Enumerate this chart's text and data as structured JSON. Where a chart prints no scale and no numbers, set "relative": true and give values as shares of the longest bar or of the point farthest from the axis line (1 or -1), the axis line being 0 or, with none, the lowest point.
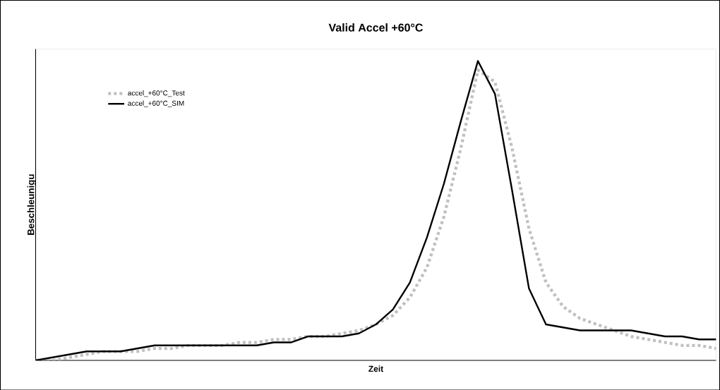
{
  "chart_data": {
    "type": "line",
    "title": "Valid Accel  +60°C",
    "xlabel": "Zeit",
    "ylabel": "Beschleunigu",
    "relative": true,
    "legend": "top left",
    "categories": [
      null,
      null,
      null,
      null,
      null,
      null,
      null,
      null,
      null,
      null,
      null,
      null,
      null,
      null,
      null,
      null,
      null,
      null,
      null,
      null,
      null,
      null,
      null,
      null,
      null,
      null,
      null,
      null,
      null,
      null,
      null,
      null,
      null,
      null,
      null,
      null,
      null,
      null,
      null,
      null,
      null
    ],
    "series": [
      {
        "name": "accel_+60°C_Test",
        "color": "#c0c0c0",
        "line_style": "dashed",
        "values": [
          0,
          0,
          0.01,
          0.02,
          0.03,
          0.03,
          0.03,
          0.04,
          0.04,
          0.05,
          0.05,
          0.05,
          0.06,
          0.06,
          0.07,
          0.07,
          0.08,
          0.08,
          0.09,
          0.1,
          0.12,
          0.15,
          0.21,
          0.31,
          0.48,
          0.71,
          0.97,
          0.93,
          0.71,
          0.44,
          0.26,
          0.18,
          0.14,
          0.12,
          0.1,
          0.08,
          0.07,
          0.06,
          0.05,
          0.05,
          0.04
        ]
      },
      {
        "name": "accel_+60°C_SIM",
        "color": "#000000",
        "line_style": "solid",
        "values": [
          0,
          0.01,
          0.02,
          0.03,
          0.03,
          0.03,
          0.04,
          0.05,
          0.05,
          0.05,
          0.05,
          0.05,
          0.05,
          0.05,
          0.06,
          0.06,
          0.08,
          0.08,
          0.08,
          0.09,
          0.12,
          0.17,
          0.26,
          0.41,
          0.59,
          0.8,
          1,
          0.89,
          0.57,
          0.24,
          0.12,
          0.11,
          0.1,
          0.1,
          0.1,
          0.1,
          0.09,
          0.08,
          0.08,
          0.07,
          0.07
        ]
      }
    ]
  }
}
